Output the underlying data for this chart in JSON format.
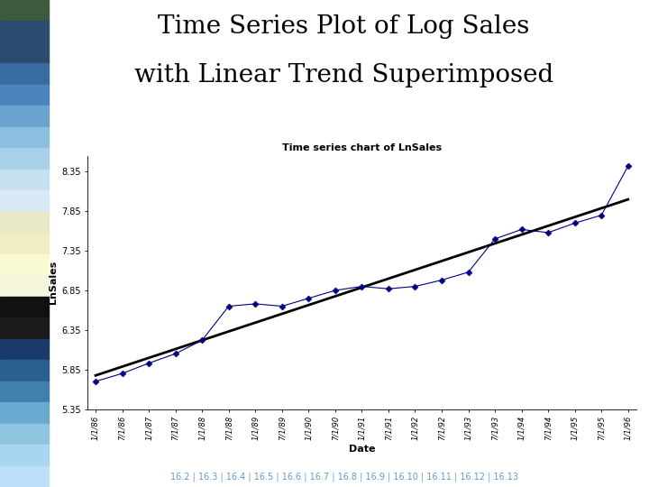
{
  "title_line1": "Time Series Plot of Log Sales",
  "title_line2": "with Linear Trend Superimposed",
  "chart_title": "Time series chart of LnSales",
  "xlabel": "Date",
  "ylabel": "LnSales",
  "yticks": [
    5.35,
    5.85,
    6.35,
    6.85,
    7.35,
    7.85,
    8.35
  ],
  "ylim": [
    5.35,
    8.55
  ],
  "data_color": "#000080",
  "trend_color": "#000000",
  "background": "#ffffff",
  "dates": [
    "1/1/86",
    "7/1/86",
    "1/1/87",
    "7/1/87",
    "1/1/88",
    "7/1/88",
    "1/1/89",
    "7/1/89",
    "1/1/90",
    "7/1/90",
    "1/1/91",
    "7/1/91",
    "1/1/92",
    "7/1/92",
    "1/1/93",
    "7/1/93",
    "1/1/94",
    "7/1/94",
    "1/1/95",
    "7/1/95",
    "1/1/96"
  ],
  "ln_sales": [
    5.7,
    5.8,
    5.93,
    6.05,
    6.22,
    6.65,
    6.68,
    6.65,
    6.75,
    6.85,
    6.9,
    6.87,
    6.9,
    6.98,
    7.08,
    7.5,
    7.62,
    7.58,
    7.7,
    7.8,
    8.42
  ],
  "footer_links": "16.2 | 16.3 | 16.4 | 16.5 | 16.6 | 16.7 | 16.8 | 16.9 | 16.10 | 16.11 | 16.12 | 16.13",
  "left_bar_colors": [
    "#3D5A3E",
    "#2B4B6F",
    "#2B4B6F",
    "#3A6B9F",
    "#4A85BF",
    "#6BA3CF",
    "#8BBFDF",
    "#A8D0E8",
    "#C5E0F0",
    "#D8EAF5",
    "#E8E8C8",
    "#F0EEC0",
    "#FAFAD2",
    "#F5F5DC",
    "#111111",
    "#1A1A1A",
    "#1A3A6B",
    "#2A6090",
    "#4080B0",
    "#6AAAD0",
    "#8EC5E0",
    "#A8D5F0",
    "#BDDFF8"
  ],
  "title_fontsize": 20,
  "chart_title_fontsize": 8,
  "tick_fontsize": 6,
  "axis_label_fontsize": 8
}
